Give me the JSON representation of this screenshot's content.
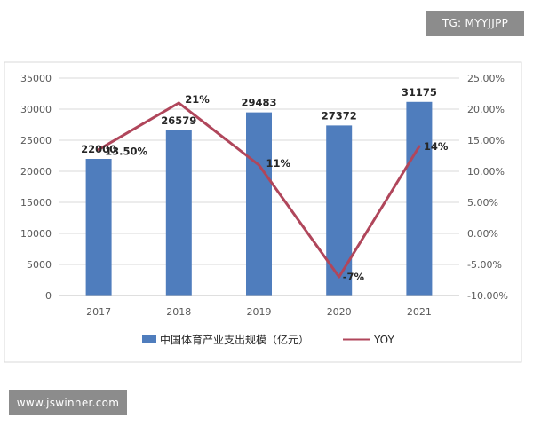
{
  "watermarks": {
    "top_right": "TG: MYYJJPP",
    "bottom_left": "www.jswinner.com"
  },
  "colors": {
    "bar": "#4f7dbd",
    "line": "#b0465b",
    "grid": "#d9d9d9",
    "watermark_bg": "#8c8c8c"
  },
  "chart_data": {
    "type": "bar",
    "categories": [
      "2017",
      "2018",
      "2019",
      "2020",
      "2021"
    ],
    "series": [
      {
        "name": "中国体育产业支出规模（亿元）",
        "type": "bar",
        "axis": "left",
        "values": [
          22000,
          26579,
          29483,
          27372,
          31175
        ],
        "labels": [
          "22000",
          "26579",
          "29483",
          "27372",
          "31175"
        ]
      },
      {
        "name": "YOY",
        "type": "line",
        "axis": "right",
        "values": [
          13.5,
          21,
          11,
          -7,
          14
        ],
        "labels": [
          "13.50%",
          "21%",
          "11%",
          "-7%",
          "14%"
        ]
      }
    ],
    "y_left": {
      "lim": [
        0,
        35000
      ],
      "ticks": [
        "0",
        "5000",
        "10000",
        "15000",
        "20000",
        "25000",
        "30000",
        "35000"
      ]
    },
    "y_right": {
      "lim": [
        -10,
        25
      ],
      "ticks": [
        "-10.00%",
        "-5.00%",
        "0.00%",
        "5.00%",
        "10.00%",
        "15.00%",
        "20.00%",
        "25.00%"
      ]
    },
    "grid": true,
    "legend": "bottom"
  }
}
